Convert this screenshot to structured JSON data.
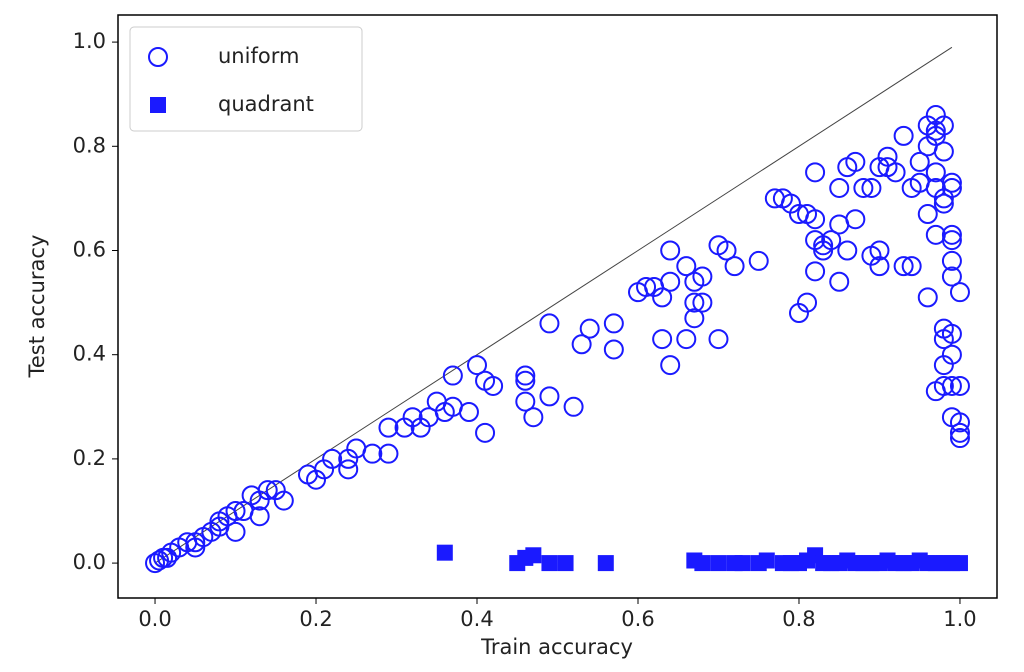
{
  "chart_data": {
    "type": "scatter",
    "xlabel": "Train accuracy",
    "ylabel": "Test accuracy",
    "xlim": [
      -0.046,
      1.046
    ],
    "ylim": [
      -0.067,
      1.052
    ],
    "xticks": [
      {
        "value": 0,
        "label": "0.0"
      },
      0.2,
      0.4,
      0.6,
      0.8,
      {
        "value": 1,
        "label": "1.0"
      }
    ],
    "yticks": [
      {
        "value": 0,
        "label": "0.0"
      },
      0.2,
      0.4,
      0.6,
      0.8,
      {
        "value": 1,
        "label": "1.0"
      }
    ],
    "grid": false,
    "legend": "upper left",
    "diagonal": {
      "x": [
        0,
        0.99
      ],
      "y": [
        0,
        0.99
      ],
      "color": "#444444"
    },
    "series": [
      {
        "name": "uniform",
        "marker": "open-circle",
        "color": "#1a1aff",
        "x": [
          0,
          0.005,
          0.01,
          0.015,
          0.02,
          0.03,
          0.04,
          0.05,
          0.06,
          0.07,
          0.08,
          0.09,
          0.1,
          0.11,
          0.12,
          0.13,
          0.14,
          0.15,
          0.16,
          0.13,
          0.1,
          0.05,
          0.08,
          0.19,
          0.2,
          0.21,
          0.22,
          0.24,
          0.25,
          0.24,
          0.27,
          0.29,
          0.29,
          0.31,
          0.32,
          0.33,
          0.34,
          0.35,
          0.36,
          0.37,
          0.37,
          0.39,
          0.4,
          0.41,
          0.42,
          0.41,
          0.46,
          0.46,
          0.46,
          0.47,
          0.49,
          0.49,
          0.52,
          0.53,
          0.54,
          0.57,
          0.57,
          0.6,
          0.61,
          0.62,
          0.63,
          0.63,
          0.64,
          0.64,
          0.64,
          0.66,
          0.66,
          0.67,
          0.67,
          0.67,
          0.68,
          0.68,
          0.7,
          0.71,
          0.7,
          0.72,
          0.75,
          0.77,
          0.78,
          0.79,
          0.8,
          0.81,
          0.82,
          0.8,
          0.81,
          0.82,
          0.82,
          0.83,
          0.83,
          0.84,
          0.82,
          0.85,
          0.85,
          0.85,
          0.86,
          0.87,
          0.87,
          0.86,
          0.88,
          0.89,
          0.89,
          0.9,
          0.9,
          0.9,
          0.91,
          0.91,
          0.92,
          0.93,
          0.93,
          0.94,
          0.94,
          0.95,
          0.95,
          0.96,
          0.96,
          0.97,
          0.97,
          0.97,
          0.96,
          0.97,
          0.96,
          0.97,
          0.97,
          0.98,
          0.98,
          0.98,
          0.98,
          0.99,
          0.99,
          0.99,
          0.99,
          0.99,
          1.0,
          0.98,
          0.98,
          0.99,
          0.98,
          0.98,
          0.99,
          0.99,
          1.0,
          0.99,
          1.0,
          1.0,
          1.0,
          0.97,
          0.99
        ],
        "y": [
          0,
          0.005,
          0.01,
          0.01,
          0.02,
          0.03,
          0.04,
          0.04,
          0.05,
          0.06,
          0.08,
          0.09,
          0.1,
          0.1,
          0.13,
          0.12,
          0.14,
          0.14,
          0.12,
          0.09,
          0.06,
          0.03,
          0.07,
          0.17,
          0.16,
          0.18,
          0.2,
          0.18,
          0.22,
          0.2,
          0.21,
          0.21,
          0.26,
          0.26,
          0.28,
          0.26,
          0.28,
          0.31,
          0.29,
          0.36,
          0.3,
          0.29,
          0.38,
          0.35,
          0.34,
          0.25,
          0.36,
          0.35,
          0.31,
          0.28,
          0.32,
          0.46,
          0.3,
          0.42,
          0.45,
          0.41,
          0.46,
          0.52,
          0.53,
          0.53,
          0.43,
          0.51,
          0.54,
          0.38,
          0.6,
          0.43,
          0.57,
          0.54,
          0.5,
          0.47,
          0.55,
          0.5,
          0.61,
          0.6,
          0.43,
          0.57,
          0.58,
          0.7,
          0.7,
          0.69,
          0.67,
          0.67,
          0.66,
          0.48,
          0.5,
          0.56,
          0.62,
          0.6,
          0.61,
          0.62,
          0.75,
          0.72,
          0.54,
          0.65,
          0.6,
          0.66,
          0.77,
          0.76,
          0.72,
          0.72,
          0.59,
          0.6,
          0.57,
          0.76,
          0.78,
          0.76,
          0.75,
          0.82,
          0.57,
          0.72,
          0.57,
          0.73,
          0.77,
          0.8,
          0.84,
          0.83,
          0.86,
          0.82,
          0.67,
          0.63,
          0.51,
          0.75,
          0.72,
          0.84,
          0.79,
          0.7,
          0.69,
          0.73,
          0.72,
          0.63,
          0.62,
          0.55,
          0.52,
          0.45,
          0.43,
          0.44,
          0.38,
          0.34,
          0.34,
          0.4,
          0.34,
          0.28,
          0.27,
          0.25,
          0.24,
          0.33,
          0.58
        ]
      },
      {
        "name": "quadrant",
        "marker": "filled-square",
        "color": "#1a1aff",
        "x": [
          0.36,
          0.45,
          0.46,
          0.47,
          0.49,
          0.51,
          0.56,
          0.67,
          0.68,
          0.7,
          0.72,
          0.73,
          0.75,
          0.76,
          0.78,
          0.79,
          0.8,
          0.81,
          0.82,
          0.83,
          0.84,
          0.85,
          0.86,
          0.87,
          0.88,
          0.89,
          0.9,
          0.91,
          0.92,
          0.93,
          0.94,
          0.95,
          0.96,
          0.97,
          0.98,
          0.99,
          1.0
        ],
        "y": [
          0.02,
          0,
          0.01,
          0.015,
          0,
          0,
          0,
          0.005,
          0,
          0,
          0,
          0,
          0,
          0.005,
          0,
          0,
          0,
          0.005,
          0.015,
          0,
          0,
          0,
          0.005,
          0,
          0,
          0,
          0,
          0.005,
          0,
          0,
          0,
          0.005,
          0,
          0,
          0,
          0,
          0
        ]
      }
    ]
  }
}
